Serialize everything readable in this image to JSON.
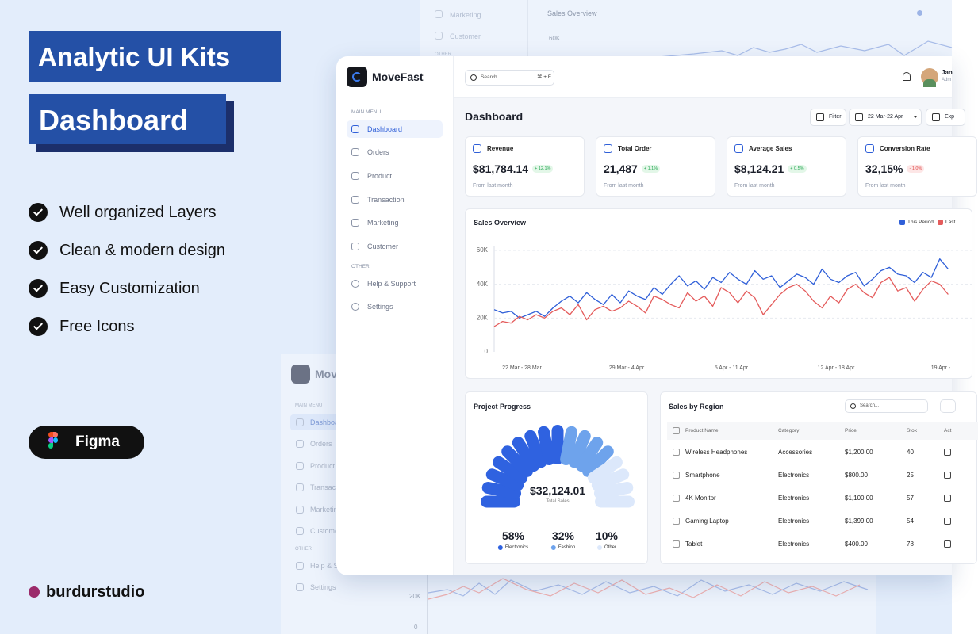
{
  "promo": {
    "title_line1": "Analytic UI Kits",
    "title_line2": "Dashboard",
    "features": [
      "Well organized Layers",
      "Clean & modern design",
      "Easy Customization",
      "Free Icons"
    ],
    "tool": "Figma",
    "studio": "burdurstudio"
  },
  "app": {
    "brand": "MoveFast",
    "search_placeholder": "Search...",
    "search_shortcut": "⌘ + F",
    "user_name": "Jan",
    "user_role": "Adm",
    "sidebar": {
      "main_menu_label": "MAIN MENU",
      "main_items": [
        "Dashboard",
        "Orders",
        "Product",
        "Transaction",
        "Marketing",
        "Customer"
      ],
      "other_label": "OTHER",
      "other_items": [
        "Help & Support",
        "Settings"
      ]
    },
    "page_title": "Dashboard",
    "filter_button": "Filter",
    "date_range": "22 Mar-22 Apr",
    "export_button": "Exp",
    "stats": [
      {
        "label": "Revenue",
        "value": "$81,784.14",
        "change": "+ 12.1%",
        "note": "From last month"
      },
      {
        "label": "Total Order",
        "value": "21,487",
        "change": "+ 1.1%",
        "note": "From last month"
      },
      {
        "label": "Average Sales",
        "value": "$8,124.21",
        "change": "+ 0.5%",
        "note": "From last month"
      },
      {
        "label": "Conversion Rate",
        "value": "32,15%",
        "change": "- 1.0%",
        "note": "From last month"
      }
    ],
    "sales_overview": {
      "type": "line",
      "title": "Sales Overview",
      "x_labels": [
        "22 Mar - 28 Mar",
        "29 Mar - 4 Apr",
        "5 Apr - 11 Apr",
        "12 Apr - 18 Apr",
        "19 Apr -"
      ],
      "ylim": [
        0,
        60000
      ],
      "yticks": [
        0,
        {
          "value": 20000,
          "label": "20K"
        },
        {
          "value": 40000,
          "label": "40K"
        },
        {
          "value": 60000,
          "label": "60K"
        }
      ],
      "grid": true,
      "series": [
        {
          "name": "This Period",
          "color": "#2f5fd8",
          "values": [
            25000,
            23000,
            24000,
            20000,
            22000,
            24000,
            21000,
            26000,
            30000,
            33000,
            29000,
            35000,
            31000,
            28000,
            34000,
            29000,
            36000,
            33000,
            31000,
            38000,
            34000,
            40000,
            45000,
            39000,
            42000,
            37000,
            44000,
            41000,
            47000,
            43000,
            40000,
            48000,
            43000,
            45000,
            38000,
            42000,
            46000,
            44000,
            40000,
            49000,
            43000,
            41000,
            45000,
            47000,
            39000,
            43000,
            48000,
            50000,
            46000,
            45000,
            41000,
            47000,
            44000,
            55000,
            49000
          ]
        },
        {
          "name": "Last",
          "color": "#e45b5b",
          "values": [
            15000,
            18000,
            17000,
            21000,
            19000,
            22000,
            20000,
            24000,
            26000,
            22000,
            28000,
            19000,
            25000,
            27000,
            24000,
            26000,
            30000,
            27000,
            23000,
            33000,
            31000,
            28000,
            26000,
            35000,
            30000,
            33000,
            27000,
            38000,
            35000,
            29000,
            36000,
            32000,
            22000,
            28000,
            34000,
            38000,
            40000,
            36000,
            30000,
            26000,
            33000,
            29000,
            37000,
            40000,
            35000,
            32000,
            41000,
            44000,
            36000,
            38000,
            30000,
            37000,
            42000,
            40000,
            34000
          ]
        }
      ]
    },
    "project_progress": {
      "title": "Project Progress",
      "total": "$32,124.01",
      "total_label": "Total Sales",
      "segments": [
        {
          "percent": "58%",
          "label": "Electronics"
        },
        {
          "percent": "32%",
          "label": "Fashion"
        },
        {
          "percent": "10%",
          "label": "Other"
        }
      ]
    },
    "sales_by_region": {
      "title": "Sales by Region",
      "search_placeholder": "Search...",
      "columns": [
        "Product Name",
        "Category",
        "Price",
        "Stok",
        "Act"
      ],
      "rows": [
        [
          "Wireless Headphones",
          "Accessories",
          "$1,200.00",
          40
        ],
        [
          "Smartphone",
          "Electronics",
          "$800.00",
          25
        ],
        [
          "4K Monitor",
          "Electronics",
          "$1,100.00",
          57
        ],
        [
          "Gaming Laptop",
          "Electronics",
          "$1,399.00",
          54
        ],
        [
          "Tablet",
          "Electronics",
          "$400.00",
          78
        ]
      ]
    }
  }
}
